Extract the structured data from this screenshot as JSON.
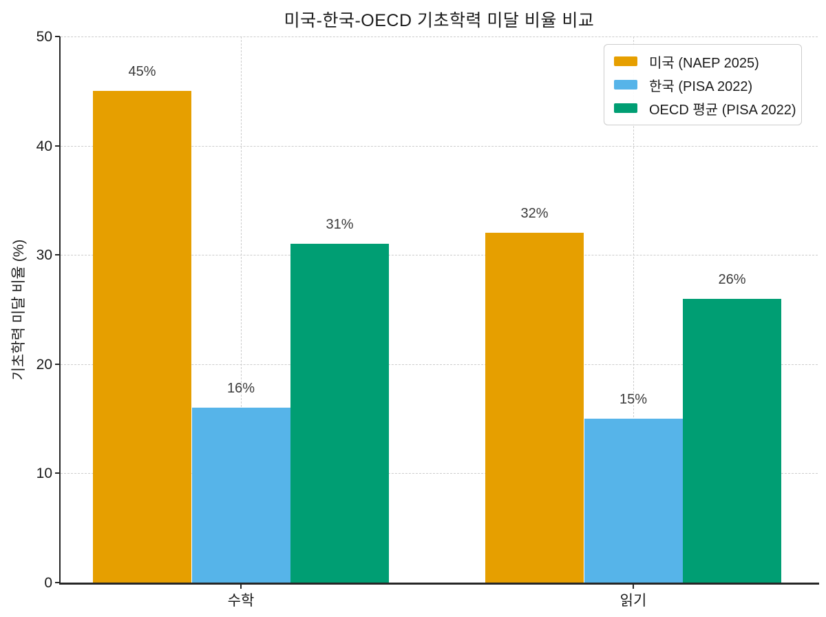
{
  "chart_data": {
    "type": "bar",
    "title": "미국-한국-OECD 기초학력 미달 비율 비교",
    "ylabel": "기초학력 미달 비율 (%)",
    "xlabel": "",
    "categories": [
      "수학",
      "읽기"
    ],
    "series": [
      {
        "name": "미국 (NAEP 2025)",
        "color": "#E69F00",
        "values": [
          45,
          32
        ]
      },
      {
        "name": "한국 (PISA 2022)",
        "color": "#56B4E9",
        "values": [
          16,
          15
        ]
      },
      {
        "name": "OECD 평균 (PISA 2022)",
        "color": "#009E73",
        "values": [
          31,
          26
        ]
      }
    ],
    "value_labels": [
      [
        "45%",
        "32%"
      ],
      [
        "16%",
        "15%"
      ],
      [
        "31%",
        "26%"
      ]
    ],
    "value_label_unit": "%",
    "ylim": [
      0,
      50
    ],
    "yticks": [
      0,
      10,
      20,
      30,
      40,
      50
    ],
    "grid": "dashed",
    "grid_axes": "both",
    "legend_position": "upper right",
    "colors": {
      "spine": "#262626",
      "grid": "#cccccc",
      "tick_label": "#1a1a1a",
      "value_label": "#3a3a3a",
      "legend_border": "#cccccc",
      "background": "#ffffff"
    }
  }
}
